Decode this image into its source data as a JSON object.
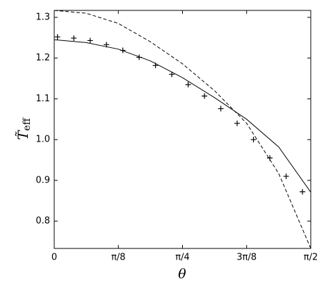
{
  "chart_data": {
    "type": "line",
    "xlabel": "θ",
    "ylabel": {
      "main": "T̃",
      "sub": "eff"
    },
    "xlim": [
      0,
      1.5708
    ],
    "ylim": [
      0.733,
      1.317
    ],
    "xticks": [
      0,
      {
        "value": 0.3927,
        "label": "π/8"
      },
      {
        "value": 0.7854,
        "label": "π/4"
      },
      {
        "value": 1.1781,
        "label": "3π/8"
      },
      {
        "value": 1.5708,
        "label": "π/2"
      }
    ],
    "yticks": [
      0.8,
      0.9,
      {
        "value": 1,
        "label": "1.0"
      },
      1.1,
      1.2,
      1.3
    ],
    "series": [
      {
        "style": "solid",
        "color": "#000000",
        "x": [
          0,
          0.1963,
          0.3927,
          0.589,
          0.7854,
          0.9817,
          1.1781,
          1.3744,
          1.5708
        ],
        "values": [
          1.245,
          1.238,
          1.222,
          1.193,
          1.152,
          1.103,
          1.05,
          0.982,
          0.871
        ]
      },
      {
        "style": "dashed",
        "color": "#000000",
        "x": [
          0,
          0.1963,
          0.3927,
          0.589,
          0.7854,
          0.9817,
          1.1781,
          1.3744,
          1.5708
        ],
        "values": [
          1.317,
          1.31,
          1.285,
          1.24,
          1.186,
          1.12,
          1.04,
          0.917,
          0.733
        ]
      },
      {
        "style": "plus",
        "color": "#000000",
        "x": [
          0.02,
          0.12,
          0.22,
          0.32,
          0.42,
          0.52,
          0.62,
          0.72,
          0.82,
          0.92,
          1.02,
          1.12,
          1.22,
          1.32,
          1.42,
          1.52
        ],
        "values": [
          1.252,
          1.249,
          1.243,
          1.233,
          1.219,
          1.202,
          1.182,
          1.16,
          1.135,
          1.107,
          1.076,
          1.04,
          1.0,
          0.955,
          0.91,
          0.872
        ]
      }
    ]
  }
}
